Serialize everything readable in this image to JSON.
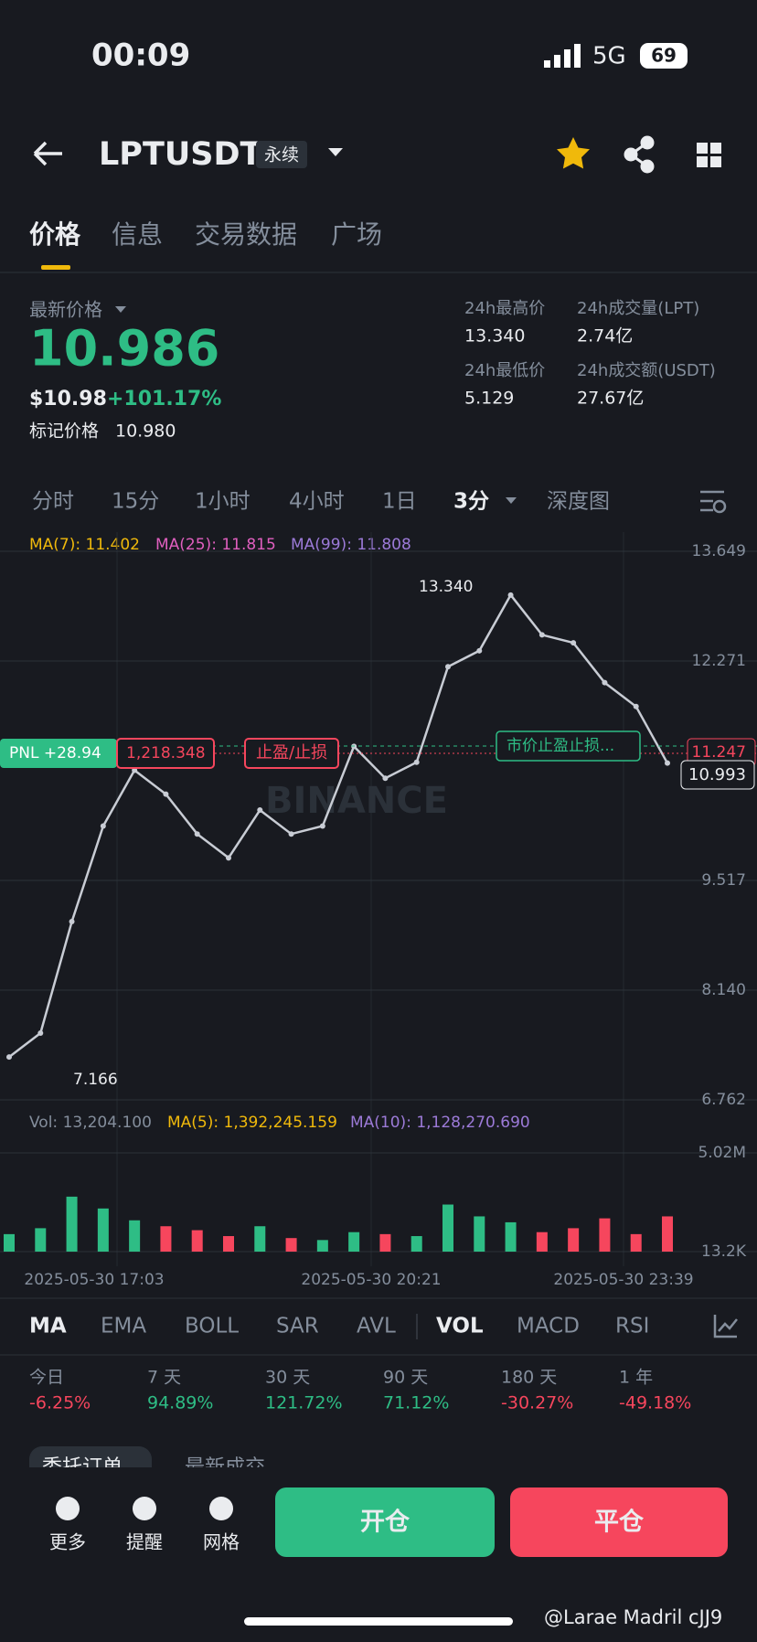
{
  "status_bar": {
    "time": "00:09",
    "network": "5G",
    "battery": "69"
  },
  "header": {
    "symbol": "LPTUSDT",
    "contract_type": "永续"
  },
  "tabs": [
    "价格",
    "信息",
    "交易数据",
    "广场"
  ],
  "price": {
    "label": "最新价格",
    "last": "10.986",
    "usd": "$10.98",
    "change": "+101.17%",
    "mark_label": "标记价格",
    "mark": "10.980"
  },
  "stats": [
    {
      "label": "24h最高价",
      "value": "13.340"
    },
    {
      "label": "24h最低价",
      "value": "5.129"
    },
    {
      "label": "24h成交量(LPT)",
      "value": "2.74亿"
    },
    {
      "label": "24h成交额(USDT)",
      "value": "27.67亿"
    }
  ],
  "intervals": [
    "分时",
    "15分",
    "1小时",
    "4小时",
    "1日",
    "3分",
    "深度图"
  ],
  "ma_legend": [
    {
      "text": "MA(7): 11.402",
      "color": "#f0b90b"
    },
    {
      "text": "MA(25): 11.815",
      "color": "#e05fbf"
    },
    {
      "text": "MA(99): 11.808",
      "color": "#9c7ad8"
    }
  ],
  "chart_data": {
    "type": "line",
    "color": "#c8ccd4",
    "values": [
      7.3,
      7.6,
      9.0,
      10.2,
      10.9,
      10.6,
      10.1,
      9.8,
      10.4,
      10.1,
      10.2,
      11.2,
      10.8,
      11.0,
      12.2,
      12.4,
      13.1,
      12.6,
      12.5,
      12.0,
      11.7,
      10.99
    ],
    "ylim": [
      6.762,
      13.649
    ],
    "yticks": [
      6.762,
      {
        "value": 8.14,
        "label": "8.140"
      },
      9.517,
      12.271,
      13.649
    ],
    "grid": true,
    "x_labels": [
      "2025-05-30 17:03",
      "2025-05-30 20:21",
      "2025-05-30 23:39"
    ],
    "annotations": {
      "high": "13.340",
      "low": "7.166",
      "pnl": "PNL +28.94",
      "position": "1,218.348",
      "tpsl": "止盈/止损",
      "market_tpsl": "市价止盈止损...",
      "mark_tag": "11.247",
      "last_tag": "10.993",
      "watermark": "BINANCE"
    }
  },
  "volume_chart": {
    "type": "bar",
    "legend": [
      {
        "text": "Vol: 13,204.100",
        "color": "#848e9c"
      },
      {
        "text": "MA(5): 1,392,245.159",
        "color": "#f0b90b"
      },
      {
        "text": "MA(10): 1,128,270.690",
        "color": "#9c7ad8"
      }
    ],
    "values": [
      900000,
      1200000,
      2800000,
      2200000,
      1600000,
      1300000,
      1100000,
      800000,
      1300000,
      700000,
      600000,
      1000000,
      900000,
      800000,
      2400000,
      1800000,
      1500000,
      1000000,
      1200000,
      1700000,
      900000,
      1800000
    ],
    "ylim": [
      13200,
      5020000
    ],
    "yticks": [
      {
        "value": 13200,
        "label": "13.2K"
      },
      {
        "value": 5020000,
        "label": "5.02M"
      }
    ],
    "up_color": "#2ebd85",
    "down_color": "#f6465d"
  },
  "indicators": [
    "MA",
    "EMA",
    "BOLL",
    "SAR",
    "AVL",
    "VOL",
    "MACD",
    "RSI"
  ],
  "performance": [
    {
      "period": "今日",
      "change": "-6.25%"
    },
    {
      "period": "7 天",
      "change": "94.89%"
    },
    {
      "period": "30 天",
      "change": "121.72%"
    },
    {
      "period": "90 天",
      "change": "71.12%"
    },
    {
      "period": "180 天",
      "change": "-30.27%"
    },
    {
      "period": "1 年",
      "change": "-49.18%"
    }
  ],
  "order_tabs": [
    "委托订单",
    "最新成交"
  ],
  "bottom_bar": {
    "tools": [
      "更多",
      "提醒",
      "网格"
    ],
    "open": "开仓",
    "close": "平仓"
  },
  "watermark": "@Larae Madril cJJ9"
}
